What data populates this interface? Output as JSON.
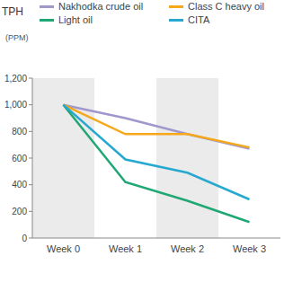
{
  "chart_data": {
    "type": "line",
    "title": "TPH",
    "y_label": "(PPM)",
    "categories": [
      "Week 0",
      "Week 1",
      "Week 2",
      "Week 3"
    ],
    "series": [
      {
        "name": "Nakhodka crude oil",
        "color": "#a197cc",
        "values": [
          1000,
          900,
          780,
          670
        ]
      },
      {
        "name": "Class C heavy oil",
        "color": "#f5a81c",
        "values": [
          1000,
          780,
          780,
          680
        ]
      },
      {
        "name": "Light oil",
        "color": "#1fa774",
        "values": [
          1000,
          420,
          280,
          120
        ]
      },
      {
        "name": "CITA",
        "color": "#27a9cf",
        "values": [
          1000,
          590,
          490,
          290
        ]
      }
    ],
    "ylim": [
      0,
      1200
    ],
    "yticks": [
      0,
      200,
      400,
      600,
      800,
      {
        "value": 1000,
        "label": "1,000"
      },
      {
        "value": 1200,
        "label": "1,200"
      }
    ],
    "grid": false,
    "legend": "top"
  }
}
